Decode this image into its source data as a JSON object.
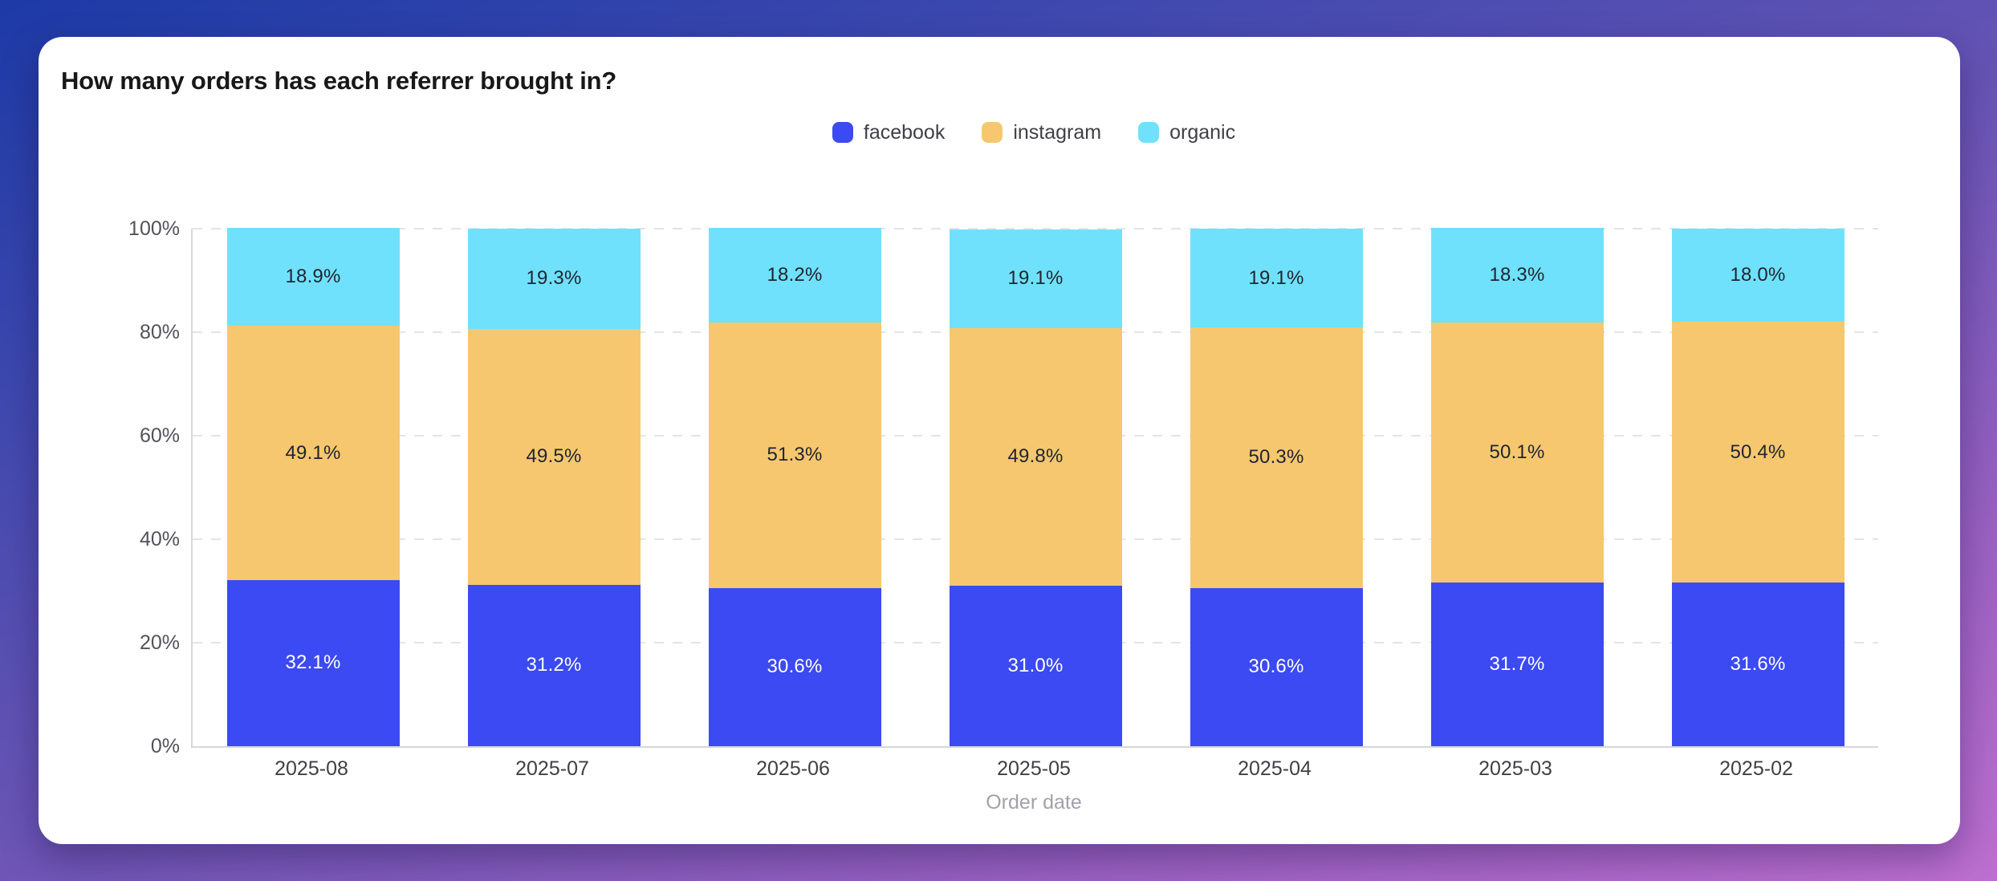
{
  "page": {
    "background_gradient": [
      "#1d3aa6",
      "#6a55b5",
      "#bd6fd0"
    ]
  },
  "chart_data": {
    "type": "bar",
    "variant": "stacked-100-percent",
    "title": "How many orders has each referrer brought in?",
    "xlabel": "Order date",
    "ylabel": "",
    "ylim": [
      0,
      100
    ],
    "y_ticks": [
      "0%",
      "20%",
      "40%",
      "60%",
      "80%",
      "100%"
    ],
    "grid": "horizontal-dashed",
    "legend_position": "top-center",
    "categories": [
      "2025-08",
      "2025-07",
      "2025-06",
      "2025-05",
      "2025-04",
      "2025-03",
      "2025-02"
    ],
    "series": [
      {
        "name": "facebook",
        "color": "#3b4af2",
        "label_color": "#ffffff",
        "values": [
          32.1,
          31.2,
          30.6,
          31.0,
          30.6,
          31.7,
          31.6
        ]
      },
      {
        "name": "instagram",
        "color": "#f6c76f",
        "label_color": "#1f2430",
        "values": [
          49.1,
          49.5,
          51.3,
          49.8,
          50.3,
          50.1,
          50.4
        ]
      },
      {
        "name": "organic",
        "color": "#70e1fc",
        "label_color": "#1f2430",
        "values": [
          18.9,
          19.3,
          18.2,
          19.1,
          19.1,
          18.3,
          18.0
        ]
      }
    ],
    "value_suffix": "%",
    "value_decimals": 1
  }
}
